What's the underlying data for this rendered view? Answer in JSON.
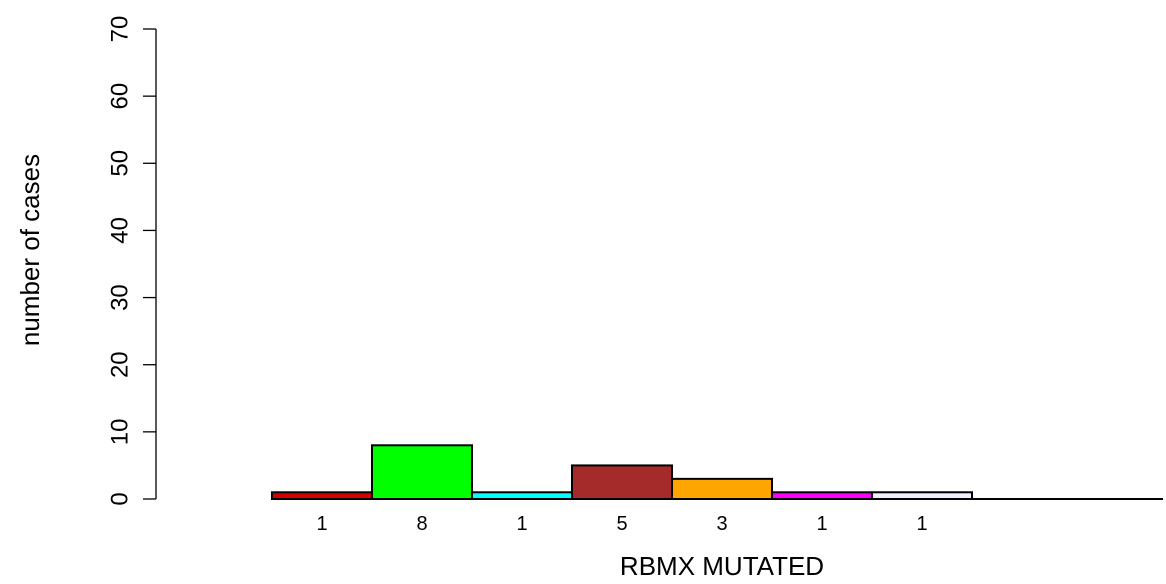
{
  "chart_data": {
    "type": "bar",
    "title": "",
    "xlabel": "RBMX MUTATED",
    "ylabel": "number of cases",
    "ylim": [
      0,
      70
    ],
    "yticks": [
      0,
      10,
      20,
      30,
      40,
      50,
      60,
      70
    ],
    "grid": false,
    "legend": "none",
    "categories": [
      "",
      "",
      "",
      "",
      "",
      "",
      ""
    ],
    "values": [
      1,
      8,
      1,
      5,
      3,
      1,
      1
    ],
    "bar_labels": [
      "1",
      "8",
      "1",
      "5",
      "3",
      "1",
      "1"
    ],
    "colors": [
      "#d40000",
      "#00ff00",
      "#00ffff",
      "#a52a2a",
      "#ffa500",
      "#ff00ff",
      "#f0f0ff"
    ]
  }
}
